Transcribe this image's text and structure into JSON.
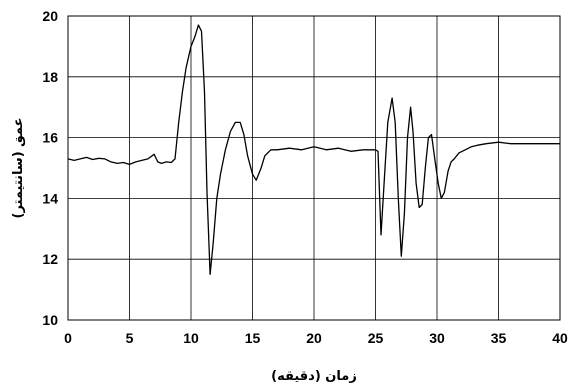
{
  "chart_data": {
    "type": "line",
    "xlabel": "زمان (دقيقه)",
    "ylabel": "عمق (سانتيمتر)",
    "xlim": [
      0,
      40
    ],
    "ylim": [
      10,
      20
    ],
    "xticks": [
      0,
      5,
      10,
      15,
      20,
      25,
      30,
      35,
      40
    ],
    "yticks": [
      10,
      12,
      14,
      16,
      18,
      20
    ],
    "xtick_labels": [
      "0",
      "5",
      "10",
      "15",
      "20",
      "25",
      "30",
      "35",
      "40"
    ],
    "ytick_labels": [
      "10",
      "12",
      "14",
      "16",
      "18",
      "20"
    ],
    "grid": true,
    "series": [
      {
        "x": [
          0,
          0.5,
          1,
          1.5,
          2,
          2.5,
          3,
          3.5,
          4,
          4.5,
          5,
          5.5,
          6,
          6.5,
          7,
          7.3,
          7.6,
          8,
          8.4,
          8.7,
          9,
          9.3,
          9.6,
          10,
          10.3,
          10.6,
          10.85,
          11.1,
          11.3,
          11.55,
          11.8,
          12.1,
          12.4,
          12.8,
          13.2,
          13.6,
          14,
          14.3,
          14.6,
          15,
          15.3,
          15.7,
          16,
          16.5,
          17,
          18,
          19,
          20,
          21,
          22,
          23,
          24,
          25,
          25.2,
          25.45,
          25.7,
          26,
          26.35,
          26.6,
          26.85,
          27.1,
          27.35,
          27.6,
          27.85,
          28.05,
          28.3,
          28.55,
          28.8,
          29.05,
          29.3,
          29.55,
          29.85,
          30.1,
          30.35,
          30.6,
          30.9,
          31.15,
          31.4,
          31.8,
          32.3,
          32.8,
          33.3,
          34,
          35,
          36,
          36.5,
          37,
          38,
          39,
          40
        ],
        "y": [
          15.3,
          15.25,
          15.3,
          15.35,
          15.28,
          15.32,
          15.3,
          15.2,
          15.15,
          15.18,
          15.12,
          15.2,
          15.25,
          15.3,
          15.45,
          15.2,
          15.15,
          15.2,
          15.18,
          15.3,
          16.5,
          17.5,
          18.3,
          19.0,
          19.3,
          19.7,
          19.5,
          17.5,
          14.2,
          11.5,
          12.5,
          14.0,
          14.8,
          15.6,
          16.2,
          16.5,
          16.5,
          16.1,
          15.4,
          14.8,
          14.6,
          15.0,
          15.4,
          15.6,
          15.6,
          15.65,
          15.6,
          15.7,
          15.6,
          15.65,
          15.55,
          15.6,
          15.6,
          15.55,
          12.8,
          14.5,
          16.5,
          17.3,
          16.5,
          14.0,
          12.1,
          13.5,
          16.0,
          17.0,
          16.2,
          14.5,
          13.7,
          13.8,
          15.0,
          16.0,
          16.1,
          15.2,
          14.5,
          14.0,
          14.2,
          14.9,
          15.2,
          15.3,
          15.5,
          15.6,
          15.7,
          15.75,
          15.8,
          15.85,
          15.8,
          15.8,
          15.8,
          15.8,
          15.8,
          15.8
        ]
      }
    ]
  }
}
